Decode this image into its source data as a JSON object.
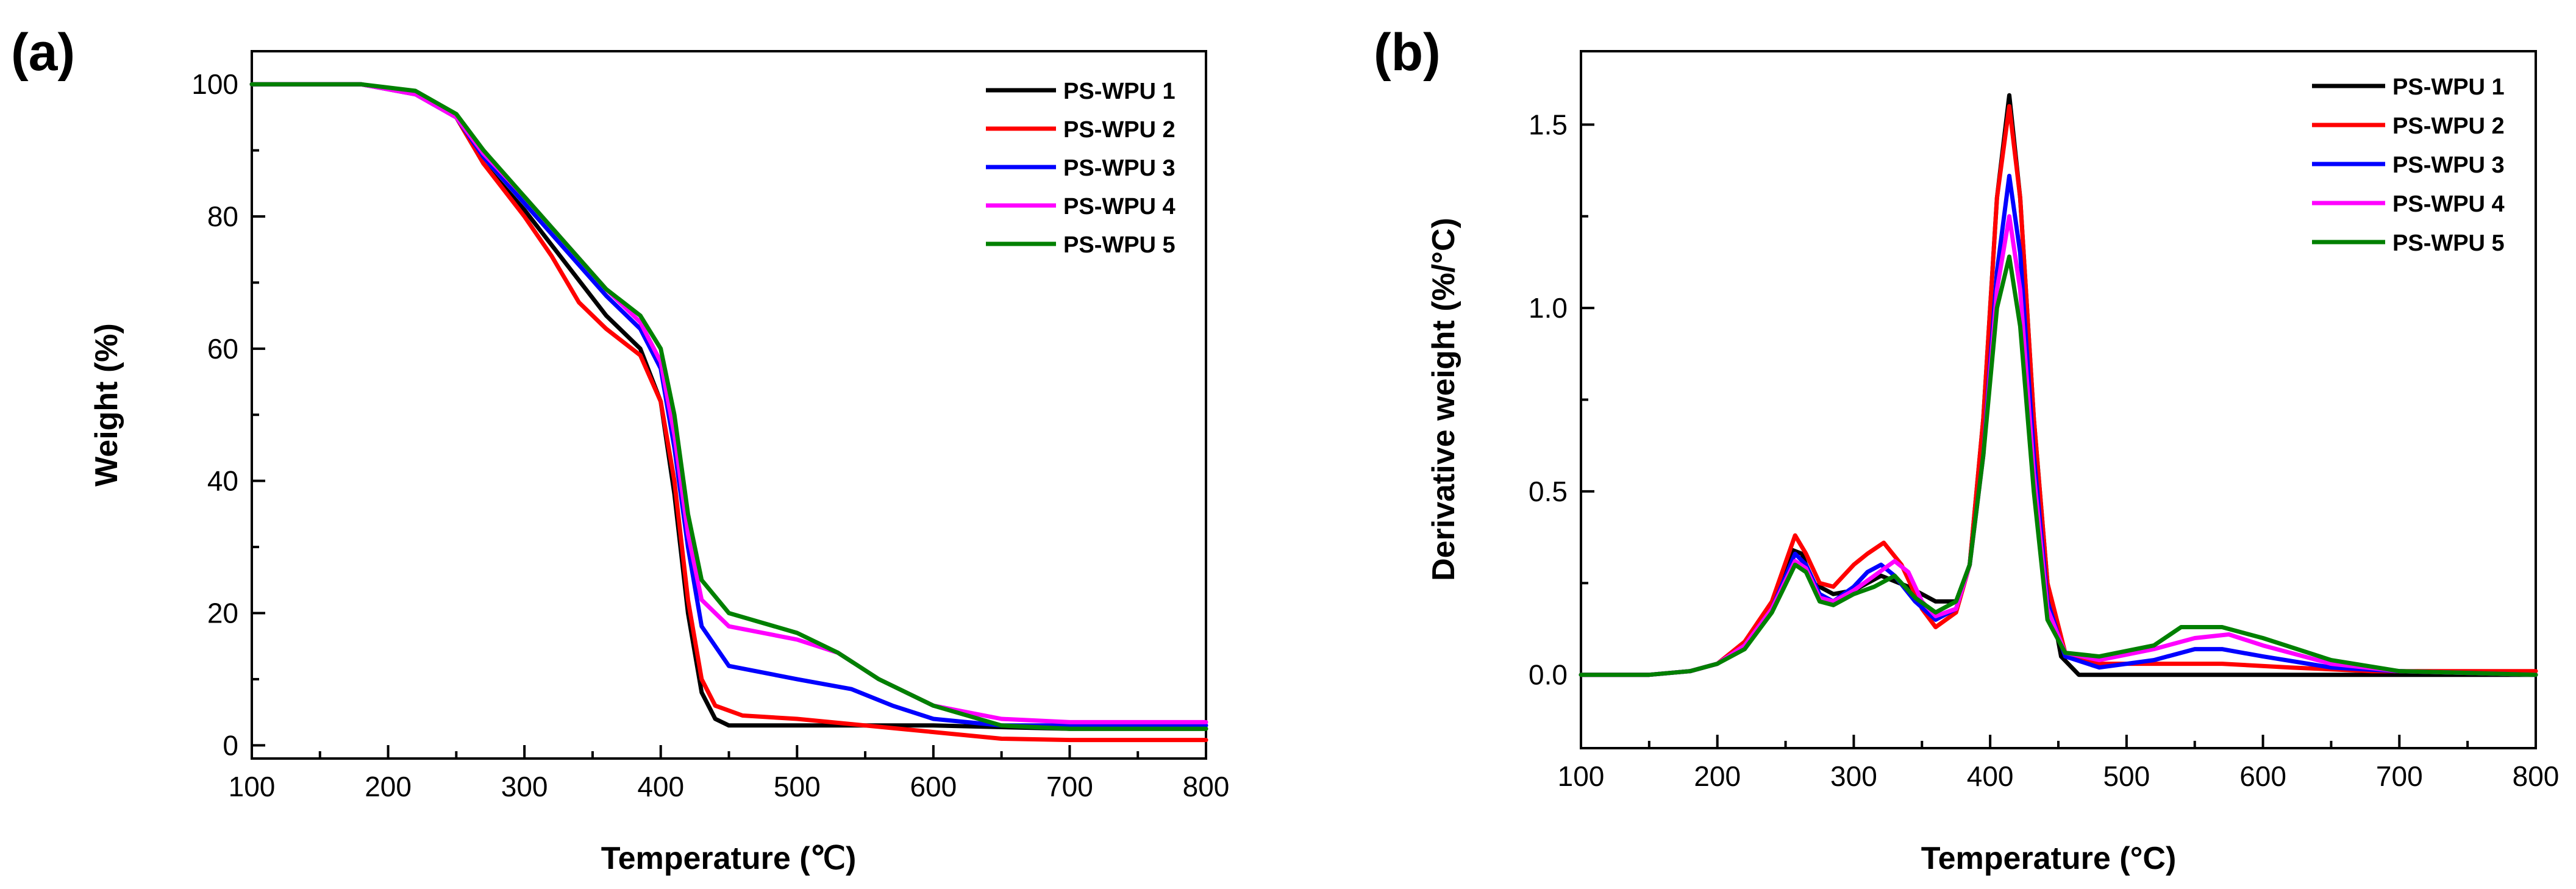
{
  "chart_data": [
    {
      "panel_label": "(a)",
      "type": "line",
      "xlabel": "Temperature (℃)",
      "ylabel": "Weight (%)",
      "xlim": [
        100,
        800
      ],
      "ylim": [
        -2,
        105
      ],
      "xticks": [
        "100",
        "200",
        "300",
        "400",
        "500",
        "600",
        "700",
        "800"
      ],
      "yticks": [
        "0",
        "20",
        "40",
        "60",
        "80",
        "100"
      ],
      "xtick_values": [
        100,
        200,
        300,
        400,
        500,
        600,
        700,
        800
      ],
      "ytick_values": [
        0,
        20,
        40,
        60,
        80,
        100
      ],
      "legend_position": "top-right",
      "series": [
        {
          "name": "PS-WPU 1",
          "color": "#000000",
          "points": [
            [
              100,
              100
            ],
            [
              180,
              100
            ],
            [
              220,
              98.5
            ],
            [
              250,
              95
            ],
            [
              270,
              88
            ],
            [
              300,
              81
            ],
            [
              330,
              73
            ],
            [
              360,
              65
            ],
            [
              385,
              60
            ],
            [
              400,
              52
            ],
            [
              410,
              38
            ],
            [
              420,
              20
            ],
            [
              430,
              8
            ],
            [
              440,
              4
            ],
            [
              450,
              3
            ],
            [
              500,
              3
            ],
            [
              600,
              3
            ],
            [
              700,
              2.5
            ],
            [
              800,
              2.5
            ]
          ]
        },
        {
          "name": "PS-WPU 2",
          "color": "#ff0000",
          "points": [
            [
              100,
              100
            ],
            [
              180,
              100
            ],
            [
              220,
              98.5
            ],
            [
              250,
              95
            ],
            [
              270,
              88
            ],
            [
              300,
              80
            ],
            [
              320,
              74
            ],
            [
              340,
              67
            ],
            [
              360,
              63
            ],
            [
              385,
              59
            ],
            [
              400,
              52
            ],
            [
              410,
              40
            ],
            [
              420,
              22
            ],
            [
              430,
              10
            ],
            [
              440,
              6
            ],
            [
              460,
              4.5
            ],
            [
              500,
              4
            ],
            [
              550,
              3
            ],
            [
              600,
              2
            ],
            [
              650,
              1
            ],
            [
              700,
              0.8
            ],
            [
              800,
              0.8
            ]
          ]
        },
        {
          "name": "PS-WPU 3",
          "color": "#0000ff",
          "points": [
            [
              100,
              100
            ],
            [
              180,
              100
            ],
            [
              220,
              98.5
            ],
            [
              250,
              95
            ],
            [
              270,
              89
            ],
            [
              300,
              82
            ],
            [
              330,
              75
            ],
            [
              360,
              68
            ],
            [
              385,
              63
            ],
            [
              400,
              57
            ],
            [
              410,
              45
            ],
            [
              420,
              30
            ],
            [
              430,
              18
            ],
            [
              450,
              12
            ],
            [
              500,
              10
            ],
            [
              540,
              8.5
            ],
            [
              570,
              6
            ],
            [
              600,
              4
            ],
            [
              650,
              3
            ],
            [
              700,
              3
            ],
            [
              800,
              3
            ]
          ]
        },
        {
          "name": "PS-WPU 4",
          "color": "#ff00ff",
          "points": [
            [
              100,
              100
            ],
            [
              180,
              100
            ],
            [
              220,
              98.5
            ],
            [
              250,
              95
            ],
            [
              270,
              89.5
            ],
            [
              300,
              83
            ],
            [
              330,
              76
            ],
            [
              360,
              69
            ],
            [
              385,
              64
            ],
            [
              400,
              58
            ],
            [
              410,
              47
            ],
            [
              420,
              32
            ],
            [
              430,
              22
            ],
            [
              450,
              18
            ],
            [
              500,
              16
            ],
            [
              530,
              14
            ],
            [
              560,
              10
            ],
            [
              600,
              6
            ],
            [
              650,
              4
            ],
            [
              700,
              3.5
            ],
            [
              800,
              3.5
            ]
          ]
        },
        {
          "name": "PS-WPU 5",
          "color": "#008000",
          "points": [
            [
              100,
              100
            ],
            [
              180,
              100
            ],
            [
              220,
              99
            ],
            [
              250,
              95.5
            ],
            [
              270,
              90
            ],
            [
              300,
              83
            ],
            [
              330,
              76
            ],
            [
              360,
              69
            ],
            [
              385,
              65
            ],
            [
              400,
              60
            ],
            [
              410,
              50
            ],
            [
              420,
              35
            ],
            [
              430,
              25
            ],
            [
              450,
              20
            ],
            [
              500,
              17
            ],
            [
              530,
              14
            ],
            [
              560,
              10
            ],
            [
              600,
              6
            ],
            [
              650,
              3
            ],
            [
              700,
              2.5
            ],
            [
              800,
              2.5
            ]
          ]
        }
      ]
    },
    {
      "panel_label": "(b)",
      "type": "line",
      "xlabel": "Temperature (°C)",
      "ylabel": "Derivative weight (%/°C)",
      "xlim": [
        100,
        800
      ],
      "ylim": [
        -0.2,
        1.7
      ],
      "xticks": [
        "100",
        "200",
        "300",
        "400",
        "500",
        "600",
        "700",
        "800"
      ],
      "yticks": [
        "0.0",
        "0.5",
        "1.0",
        "1.5"
      ],
      "xtick_values": [
        100,
        200,
        300,
        400,
        500,
        600,
        700,
        800
      ],
      "ytick_values": [
        0,
        0.5,
        1.0,
        1.5
      ],
      "legend_position": "top-right",
      "series": [
        {
          "name": "PS-WPU 1",
          "color": "#000000",
          "points": [
            [
              100,
              0
            ],
            [
              150,
              0
            ],
            [
              180,
              0.01
            ],
            [
              200,
              0.03
            ],
            [
              220,
              0.08
            ],
            [
              240,
              0.18
            ],
            [
              255,
              0.34
            ],
            [
              262,
              0.33
            ],
            [
              270,
              0.25
            ],
            [
              285,
              0.22
            ],
            [
              300,
              0.23
            ],
            [
              320,
              0.27
            ],
            [
              340,
              0.24
            ],
            [
              360,
              0.2
            ],
            [
              375,
              0.2
            ],
            [
              385,
              0.3
            ],
            [
              395,
              0.7
            ],
            [
              405,
              1.3
            ],
            [
              414,
              1.58
            ],
            [
              422,
              1.3
            ],
            [
              432,
              0.7
            ],
            [
              442,
              0.25
            ],
            [
              452,
              0.05
            ],
            [
              465,
              0
            ],
            [
              500,
              0
            ],
            [
              600,
              0
            ],
            [
              700,
              0
            ],
            [
              800,
              0
            ]
          ]
        },
        {
          "name": "PS-WPU 2",
          "color": "#ff0000",
          "points": [
            [
              100,
              0
            ],
            [
              150,
              0
            ],
            [
              180,
              0.01
            ],
            [
              200,
              0.03
            ],
            [
              220,
              0.09
            ],
            [
              240,
              0.2
            ],
            [
              257,
              0.38
            ],
            [
              265,
              0.33
            ],
            [
              275,
              0.25
            ],
            [
              285,
              0.24
            ],
            [
              300,
              0.3
            ],
            [
              310,
              0.33
            ],
            [
              322,
              0.36
            ],
            [
              335,
              0.3
            ],
            [
              350,
              0.18
            ],
            [
              360,
              0.13
            ],
            [
              375,
              0.17
            ],
            [
              385,
              0.3
            ],
            [
              395,
              0.7
            ],
            [
              405,
              1.3
            ],
            [
              414,
              1.55
            ],
            [
              422,
              1.3
            ],
            [
              432,
              0.7
            ],
            [
              442,
              0.25
            ],
            [
              455,
              0.06
            ],
            [
              480,
              0.03
            ],
            [
              530,
              0.03
            ],
            [
              570,
              0.03
            ],
            [
              620,
              0.02
            ],
            [
              680,
              0.01
            ],
            [
              800,
              0.01
            ]
          ]
        },
        {
          "name": "PS-WPU 3",
          "color": "#0000ff",
          "points": [
            [
              100,
              0
            ],
            [
              150,
              0
            ],
            [
              180,
              0.01
            ],
            [
              200,
              0.03
            ],
            [
              220,
              0.08
            ],
            [
              240,
              0.18
            ],
            [
              257,
              0.33
            ],
            [
              265,
              0.3
            ],
            [
              275,
              0.22
            ],
            [
              285,
              0.2
            ],
            [
              300,
              0.24
            ],
            [
              310,
              0.28
            ],
            [
              320,
              0.3
            ],
            [
              330,
              0.27
            ],
            [
              345,
              0.2
            ],
            [
              360,
              0.15
            ],
            [
              375,
              0.18
            ],
            [
              385,
              0.3
            ],
            [
              395,
              0.6
            ],
            [
              405,
              1.1
            ],
            [
              414,
              1.36
            ],
            [
              422,
              1.15
            ],
            [
              432,
              0.6
            ],
            [
              442,
              0.2
            ],
            [
              455,
              0.05
            ],
            [
              480,
              0.02
            ],
            [
              520,
              0.04
            ],
            [
              550,
              0.07
            ],
            [
              570,
              0.07
            ],
            [
              600,
              0.05
            ],
            [
              650,
              0.02
            ],
            [
              700,
              0.01
            ],
            [
              800,
              0
            ]
          ]
        },
        {
          "name": "PS-WPU 4",
          "color": "#ff00ff",
          "points": [
            [
              100,
              0
            ],
            [
              150,
              0
            ],
            [
              180,
              0.01
            ],
            [
              200,
              0.03
            ],
            [
              220,
              0.08
            ],
            [
              240,
              0.18
            ],
            [
              257,
              0.31
            ],
            [
              265,
              0.29
            ],
            [
              275,
              0.21
            ],
            [
              285,
              0.2
            ],
            [
              300,
              0.23
            ],
            [
              315,
              0.27
            ],
            [
              330,
              0.31
            ],
            [
              340,
              0.28
            ],
            [
              350,
              0.2
            ],
            [
              360,
              0.16
            ],
            [
              375,
              0.18
            ],
            [
              385,
              0.3
            ],
            [
              395,
              0.6
            ],
            [
              405,
              1.05
            ],
            [
              414,
              1.25
            ],
            [
              422,
              1.05
            ],
            [
              432,
              0.55
            ],
            [
              442,
              0.18
            ],
            [
              455,
              0.06
            ],
            [
              480,
              0.04
            ],
            [
              520,
              0.07
            ],
            [
              550,
              0.1
            ],
            [
              575,
              0.11
            ],
            [
              600,
              0.08
            ],
            [
              650,
              0.03
            ],
            [
              700,
              0.01
            ],
            [
              800,
              0
            ]
          ]
        },
        {
          "name": "PS-WPU 5",
          "color": "#008000",
          "points": [
            [
              100,
              0
            ],
            [
              150,
              0
            ],
            [
              180,
              0.01
            ],
            [
              200,
              0.03
            ],
            [
              220,
              0.07
            ],
            [
              240,
              0.17
            ],
            [
              257,
              0.3
            ],
            [
              265,
              0.28
            ],
            [
              275,
              0.2
            ],
            [
              285,
              0.19
            ],
            [
              300,
              0.22
            ],
            [
              315,
              0.24
            ],
            [
              330,
              0.27
            ],
            [
              345,
              0.21
            ],
            [
              360,
              0.17
            ],
            [
              375,
              0.2
            ],
            [
              385,
              0.3
            ],
            [
              395,
              0.6
            ],
            [
              405,
              1.0
            ],
            [
              414,
              1.14
            ],
            [
              422,
              0.95
            ],
            [
              432,
              0.5
            ],
            [
              442,
              0.15
            ],
            [
              455,
              0.06
            ],
            [
              480,
              0.05
            ],
            [
              520,
              0.08
            ],
            [
              540,
              0.13
            ],
            [
              570,
              0.13
            ],
            [
              600,
              0.1
            ],
            [
              650,
              0.04
            ],
            [
              700,
              0.01
            ],
            [
              800,
              0
            ]
          ]
        }
      ]
    }
  ]
}
